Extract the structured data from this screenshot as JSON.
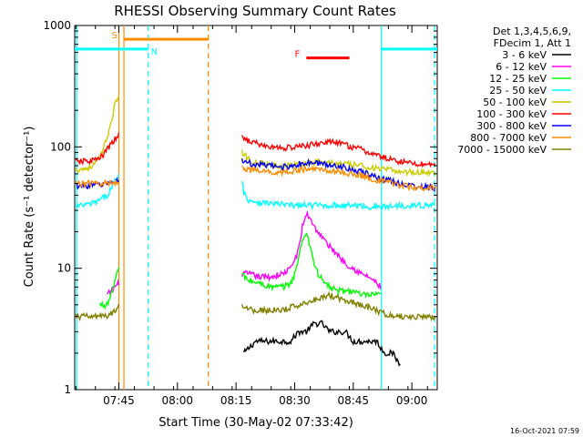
{
  "chart_data": {
    "type": "line",
    "title": "RHESSI Observing Summary Count Rates",
    "xlabel": "Start Time (30-May-02 07:33:42)",
    "ylabel": "Count Rate (s⁻¹ detector⁻¹)",
    "timestamp": "16-Oct-2021 07:59",
    "y_scale": "log",
    "ylim": [
      1,
      1000
    ],
    "x_unit": "minutes after 07:33",
    "xlim": [
      0.7,
      93.5
    ],
    "x_ticks": [
      {
        "value": 12,
        "label": "07:45"
      },
      {
        "value": 27,
        "label": "08:00"
      },
      {
        "value": 42,
        "label": "08:15"
      },
      {
        "value": 57,
        "label": "08:30"
      },
      {
        "value": 72,
        "label": "08:45"
      },
      {
        "value": 87,
        "label": "09:00"
      }
    ],
    "y_ticks": [
      {
        "value": 1,
        "label": "1"
      },
      {
        "value": 10,
        "label": "10"
      },
      {
        "value": 100,
        "label": "100"
      },
      {
        "value": 1000,
        "label": "1000"
      }
    ],
    "legend_header": [
      "Det 1,3,4,5,6,9,",
      "FDecim 1, Att 1"
    ],
    "legend_position": "right",
    "series": [
      {
        "name": "3 - 6 keV",
        "color": "#000000",
        "segments": [
          {
            "x": [
              44,
              47,
              50,
              53,
              56,
              58,
              60,
              62,
              64,
              66,
              68,
              70,
              72,
              74,
              76,
              78,
              80,
              82,
              84
            ],
            "y": [
              2,
              2.5,
              2.5,
              2.5,
              2.5,
              3,
              3,
              3.5,
              3.5,
              3,
              3,
              3,
              2.5,
              2.5,
              2.5,
              2.5,
              2,
              2,
              1.6
            ]
          }
        ]
      },
      {
        "name": "6 - 12 keV",
        "color": "#ff00ff",
        "segments": [
          {
            "x": [
              9,
              10,
              11,
              12
            ],
            "y": [
              6,
              6.5,
              7,
              7.5
            ]
          },
          {
            "x": [
              43.5,
              45,
              48,
              51,
              54,
              56,
              58,
              59,
              60,
              61,
              62,
              64,
              66,
              68,
              70,
              72,
              74,
              76,
              78,
              79
            ],
            "y": [
              9,
              9,
              8.5,
              8.5,
              9,
              10,
              14,
              22,
              28,
              26,
              22,
              18,
              15,
              13,
              11,
              10,
              9,
              8.5,
              7.5,
              7
            ]
          }
        ]
      },
      {
        "name": "12 - 25 keV",
        "color": "#00ff00",
        "segments": [
          {
            "x": [
              7,
              8,
              9,
              10,
              11,
              12
            ],
            "y": [
              5,
              5,
              5,
              6,
              8,
              10
            ]
          },
          {
            "x": [
              43.5,
              45,
              48,
              51,
              54,
              56,
              57,
              58,
              59,
              60,
              61,
              62,
              63,
              64,
              66,
              68,
              70,
              72,
              74,
              76,
              78,
              79
            ],
            "y": [
              9,
              8,
              7.5,
              7,
              7,
              7.5,
              9,
              12,
              17,
              20,
              15,
              11,
              9,
              8,
              7,
              6.5,
              6.5,
              6.5,
              6,
              6,
              6,
              6
            ]
          }
        ]
      },
      {
        "name": "25 - 50 keV",
        "color": "#00ffff",
        "segments": [
          {
            "x": [
              1,
              3,
              5,
              7,
              9,
              10,
              11,
              12
            ],
            "y": [
              32,
              33,
              34,
              36,
              40,
              45,
              52,
              58
            ]
          },
          {
            "x": [
              43.5,
              44,
              45,
              46,
              48,
              52,
              56,
              60,
              64,
              68,
              72,
              76,
              80,
              84,
              88,
              93
            ],
            "y": [
              55,
              42,
              37,
              36,
              35,
              34,
              33,
              33,
              33,
              33,
              33,
              32,
              32,
              33,
              33,
              33
            ]
          }
        ]
      },
      {
        "name": "50 - 100 keV",
        "color": "#cccc00",
        "segments": [
          {
            "x": [
              1,
              3,
              5,
              7,
              8,
              9,
              10,
              11,
              12
            ],
            "y": [
              65,
              66,
              68,
              80,
              95,
              120,
              160,
              220,
              270
            ]
          },
          {
            "x": [
              43.5,
              46,
              50,
              54,
              58,
              62,
              66,
              70,
              74,
              78,
              82,
              86,
              90,
              93
            ],
            "y": [
              90,
              75,
              72,
              70,
              72,
              75,
              74,
              72,
              70,
              66,
              64,
              62,
              62,
              62
            ]
          }
        ]
      },
      {
        "name": "100 - 300 keV",
        "color": "#ff0000",
        "segments": [
          {
            "x": [
              1,
              3,
              5,
              7,
              8,
              9,
              10,
              11,
              12
            ],
            "y": [
              75,
              76,
              77,
              80,
              85,
              95,
              105,
              115,
              125
            ]
          },
          {
            "x": [
              43.5,
              46,
              50,
              54,
              58,
              62,
              65,
              68,
              70,
              74,
              78,
              82,
              86,
              90,
              93
            ],
            "y": [
              120,
              110,
              100,
              98,
              100,
              105,
              110,
              108,
              104,
              95,
              85,
              78,
              74,
              72,
              72
            ]
          }
        ]
      },
      {
        "name": "300 - 800 keV",
        "color": "#0000ff",
        "segments": [
          {
            "x": [
              1,
              3,
              5,
              7,
              9,
              10,
              11,
              12
            ],
            "y": [
              48,
              48,
              48,
              49,
              50,
              51,
              52,
              53
            ]
          },
          {
            "x": [
              43.5,
              46,
              50,
              54,
              58,
              62,
              66,
              70,
              74,
              78,
              82,
              86,
              90,
              93
            ],
            "y": [
              78,
              72,
              70,
              68,
              72,
              74,
              71,
              68,
              62,
              56,
              52,
              48,
              47,
              46
            ]
          }
        ]
      },
      {
        "name": "800 - 7000 keV",
        "color": "#ff8c00",
        "segments": [
          {
            "x": [
              1,
              3,
              5,
              7,
              9,
              10,
              11,
              12
            ],
            "y": [
              50,
              50,
              50,
              50,
              50,
              50,
              51,
              52
            ]
          },
          {
            "x": [
              43.5,
              46,
              50,
              54,
              58,
              62,
              66,
              70,
              74,
              78,
              82,
              86,
              90,
              93
            ],
            "y": [
              68,
              64,
              62,
              62,
              64,
              66,
              64,
              61,
              58,
              53,
              50,
              47,
              46,
              46
            ]
          }
        ]
      },
      {
        "name": "7000 - 15000 keV",
        "color": "#808000",
        "segments": [
          {
            "x": [
              1,
              3,
              5,
              7,
              9,
              11,
              12
            ],
            "y": [
              4,
              4,
              4,
              4,
              4,
              4.5,
              5
            ]
          },
          {
            "x": [
              43.5,
              46,
              50,
              54,
              58,
              62,
              66,
              70,
              74,
              78,
              82,
              86,
              90,
              93
            ],
            "y": [
              5,
              4.5,
              4.5,
              4.5,
              5,
              5.5,
              6,
              5.5,
              5,
              4.5,
              4,
              4,
              4,
              4
            ]
          }
        ]
      }
    ],
    "vertical_markers": [
      {
        "x": 1.2,
        "color": "#00ffff",
        "style": "solid"
      },
      {
        "x": 19.5,
        "color": "#00ffff",
        "style": "dashed"
      },
      {
        "x": 79.2,
        "color": "#00ffff",
        "style": "solid"
      },
      {
        "x": 92.8,
        "color": "#00ffff",
        "style": "dashed"
      },
      {
        "x": 12.0,
        "color": "#ff8c00",
        "style": "solid"
      },
      {
        "x": 13.3,
        "color": "#ff8c00",
        "style": "solid"
      },
      {
        "x": 34.9,
        "color": "#ff8c00",
        "style": "dashed"
      }
    ],
    "interval_bars": [
      {
        "label": "S",
        "color": "#ff8c00",
        "x_start": 13.3,
        "x_end": 34.9,
        "y": 770
      },
      {
        "label": "N",
        "color": "#00ffff",
        "x_start": 0.7,
        "x_end": 19.5,
        "y": 640
      },
      {
        "label": "",
        "color": "#00ffff",
        "x_start": 79.2,
        "x_end": 93.5,
        "y": 640
      },
      {
        "label": "F",
        "color": "#ff0000",
        "x_start": 60,
        "x_end": 71,
        "y": 540
      }
    ]
  }
}
